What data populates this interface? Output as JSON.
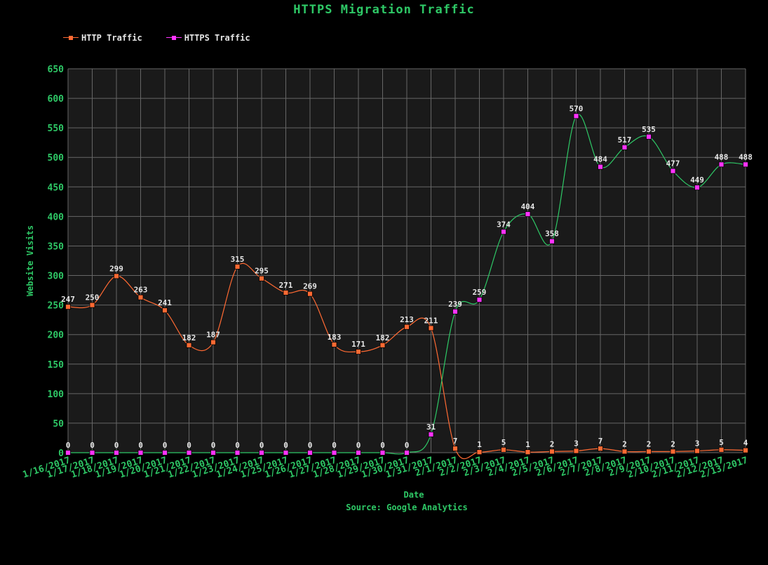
{
  "chart_data": {
    "type": "line",
    "title": "HTTPS Migration Traffic",
    "xlabel": "Date",
    "ylabel": "Website Visits",
    "source": "Source: Google Analytics",
    "ylim": [
      0,
      650
    ],
    "yticks": [
      0,
      50,
      100,
      150,
      200,
      250,
      300,
      350,
      400,
      450,
      500,
      550,
      600,
      650
    ],
    "grid": true,
    "smooth": true,
    "legend_position": "top-left",
    "categories": [
      "1/16/2017",
      "1/17/2017",
      "1/18/2017",
      "1/19/2017",
      "1/20/2017",
      "1/21/2017",
      "1/22/2017",
      "1/23/2017",
      "1/24/2017",
      "1/25/2017",
      "1/26/2017",
      "1/27/2017",
      "1/28/2017",
      "1/29/2017",
      "1/30/2017",
      "1/31/2017",
      "2/1/2017",
      "2/2/2017",
      "2/3/2017",
      "2/4/2017",
      "2/5/2017",
      "2/6/2017",
      "2/7/2017",
      "2/8/2017",
      "2/9/2017",
      "2/10/2017",
      "2/11/2017",
      "2/12/2017",
      "2/13/2017"
    ],
    "series": [
      {
        "name": "HTTP Traffic",
        "color": "#ff6a33",
        "values": [
          247,
          250,
          299,
          263,
          241,
          182,
          187,
          315,
          295,
          271,
          269,
          183,
          171,
          182,
          213,
          211,
          7,
          1,
          5,
          1,
          2,
          3,
          7,
          2,
          2,
          2,
          3,
          5,
          4
        ]
      },
      {
        "name": "HTTPS Traffic",
        "color": "#ff33ff",
        "values": [
          0,
          0,
          0,
          0,
          0,
          0,
          0,
          0,
          0,
          0,
          0,
          0,
          0,
          0,
          0,
          31,
          239,
          259,
          374,
          404,
          358,
          570,
          484,
          517,
          535,
          477,
          449,
          488,
          488
        ]
      }
    ]
  },
  "colors": {
    "background": "#000000",
    "plot_background": "#1a1a1a",
    "grid": "#666666",
    "text_accent": "#2ec866",
    "label_text": "#e6e6e6",
    "https_line": "#2ec866"
  }
}
